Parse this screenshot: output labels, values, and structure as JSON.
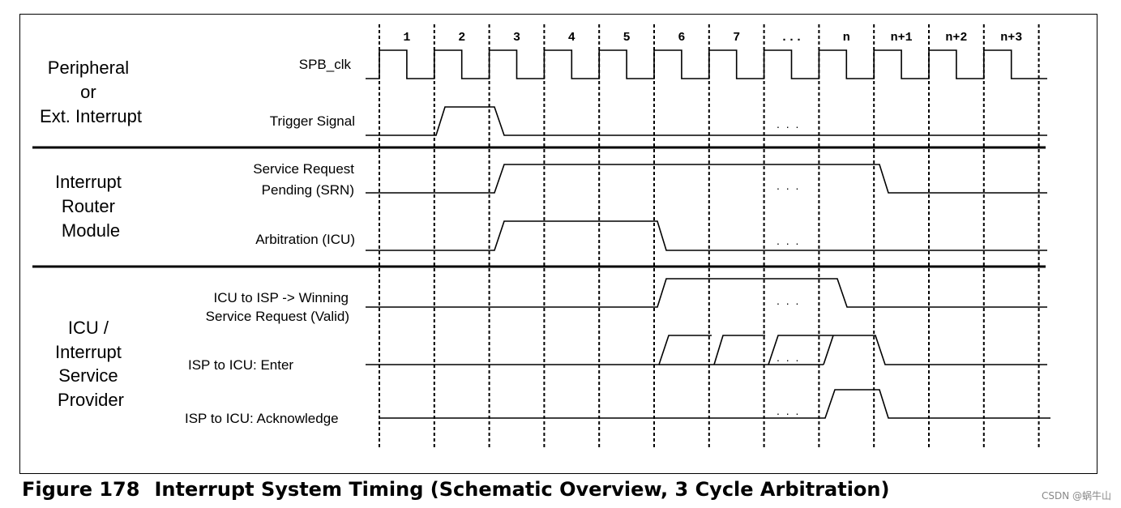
{
  "groups": [
    {
      "lines": [
        "Peripheral",
        "or",
        "Ext. Interrupt"
      ]
    },
    {
      "lines": [
        "Interrupt",
        "Router",
        "Module"
      ]
    },
    {
      "lines": [
        "ICU /",
        "Interrupt",
        "Service",
        "Provider"
      ]
    }
  ],
  "signals": {
    "spb_clk": "SPB_clk",
    "trigger": "Trigger Signal",
    "srn_1": "Service Request",
    "srn_2": "Pending (SRN)",
    "arbitration": "Arbitration (ICU)",
    "winning_1": "ICU  to  ISP -> Winning",
    "winning_2": "Service Request (Valid)",
    "enter": "ISP to ICU:  Enter",
    "ack": "ISP to ICU: Acknowledge"
  },
  "cycles": [
    "1",
    "2",
    "3",
    "4",
    "5",
    "6",
    "7",
    "...",
    "n",
    "n+1",
    "n+2",
    "n+3"
  ],
  "ellipsis": ". . .",
  "caption": {
    "number": "Figure 178",
    "title": "Interrupt System Timing (Schematic Overview, 3 Cycle Arbitration)"
  },
  "watermark": "CSDN @蜗牛山"
}
